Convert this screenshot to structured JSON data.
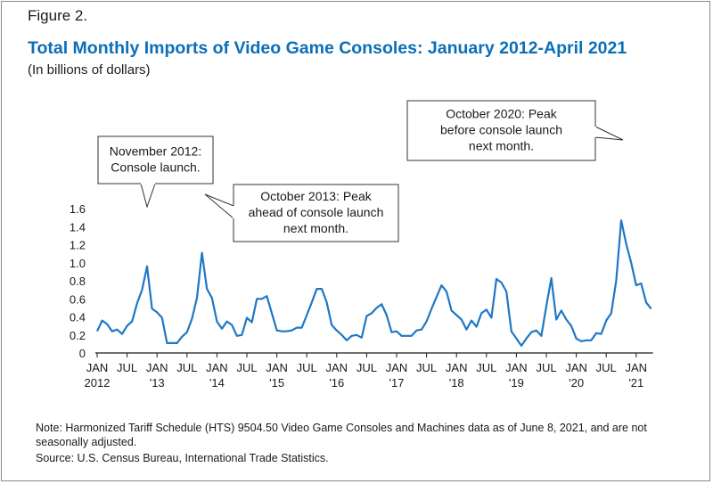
{
  "header": {
    "figure_label": "Figure 2.",
    "title": "Total Monthly Imports of Video Game Consoles: January 2012-April 2021",
    "subtitle": "(In billions of dollars)"
  },
  "footer": {
    "note": "Note: Harmonized Tariff Schedule (HTS) 9504.50 Video Game Consoles and Machines data as of June 8, 2021, and are not seasonally adjusted.",
    "source": "Source: U.S. Census Bureau, International Trade Statistics."
  },
  "colors": {
    "title": "#0b6fb8",
    "line": "#1f77c4",
    "axis": "#1a1a1a"
  },
  "chart_data": {
    "type": "line",
    "title": "Total Monthly Imports of Video Game Consoles: January 2012-April 2021",
    "ylabel": "(In billions of dollars)",
    "ylim": [
      0,
      1.6
    ],
    "yticks": [
      0,
      0.2,
      0.4,
      0.6,
      0.8,
      1.0,
      1.2,
      1.4,
      1.6
    ],
    "ytick_labels": [
      "0",
      "0.2",
      "0.4",
      "0.6",
      "0.8",
      "1.0",
      "1.2",
      "1.4",
      "1.6"
    ],
    "xticks": [
      {
        "month": "JAN",
        "year": "2012"
      },
      {
        "month": "JUL",
        "year": ""
      },
      {
        "month": "JAN",
        "year": "'13"
      },
      {
        "month": "JUL",
        "year": ""
      },
      {
        "month": "JAN",
        "year": "'14"
      },
      {
        "month": "JUL",
        "year": ""
      },
      {
        "month": "JAN",
        "year": "'15"
      },
      {
        "month": "JUL",
        "year": ""
      },
      {
        "month": "JAN",
        "year": "'16"
      },
      {
        "month": "JUL",
        "year": ""
      },
      {
        "month": "JAN",
        "year": "'17"
      },
      {
        "month": "JUL",
        "year": ""
      },
      {
        "month": "JAN",
        "year": "'18"
      },
      {
        "month": "JUL",
        "year": ""
      },
      {
        "month": "JAN",
        "year": "'19"
      },
      {
        "month": "JUL",
        "year": ""
      },
      {
        "month": "JAN",
        "year": "'20"
      },
      {
        "month": "JUL",
        "year": ""
      },
      {
        "month": "JAN",
        "year": "'21"
      }
    ],
    "x_start": "2012-01",
    "x_end": "2021-04",
    "series": [
      {
        "values": [
          0.24,
          0.36,
          0.32,
          0.24,
          0.26,
          0.21,
          0.3,
          0.35,
          0.55,
          0.7,
          0.96,
          0.49,
          0.45,
          0.39,
          0.11,
          0.11,
          0.11,
          0.18,
          0.23,
          0.38,
          0.61,
          1.11,
          0.71,
          0.61,
          0.35,
          0.27,
          0.35,
          0.31,
          0.19,
          0.2,
          0.39,
          0.34,
          0.6,
          0.6,
          0.63,
          0.44,
          0.25,
          0.24,
          0.24,
          0.25,
          0.28,
          0.28,
          0.42,
          0.56,
          0.71,
          0.71,
          0.56,
          0.31,
          0.25,
          0.2,
          0.14,
          0.19,
          0.2,
          0.17,
          0.41,
          0.44,
          0.5,
          0.54,
          0.42,
          0.23,
          0.24,
          0.19,
          0.19,
          0.19,
          0.25,
          0.26,
          0.35,
          0.49,
          0.62,
          0.75,
          0.68,
          0.47,
          0.42,
          0.37,
          0.26,
          0.36,
          0.29,
          0.44,
          0.48,
          0.39,
          0.82,
          0.78,
          0.68,
          0.24,
          0.16,
          0.08,
          0.16,
          0.23,
          0.25,
          0.19,
          0.52,
          0.83,
          0.37,
          0.47,
          0.37,
          0.3,
          0.16,
          0.13,
          0.14,
          0.14,
          0.22,
          0.21,
          0.36,
          0.44,
          0.8,
          1.47,
          1.21,
          1.0,
          0.75,
          0.77,
          0.56,
          0.49
        ]
      }
    ],
    "annotations": [
      {
        "lines": [
          "November 2012:",
          "Console launch."
        ],
        "date": "2012-11"
      },
      {
        "lines": [
          "October 2013: Peak",
          "ahead of console launch",
          "next month."
        ],
        "date": "2013-10"
      },
      {
        "lines": [
          "October 2020: Peak",
          "before console launch",
          "next month."
        ],
        "date": "2020-10"
      }
    ]
  }
}
